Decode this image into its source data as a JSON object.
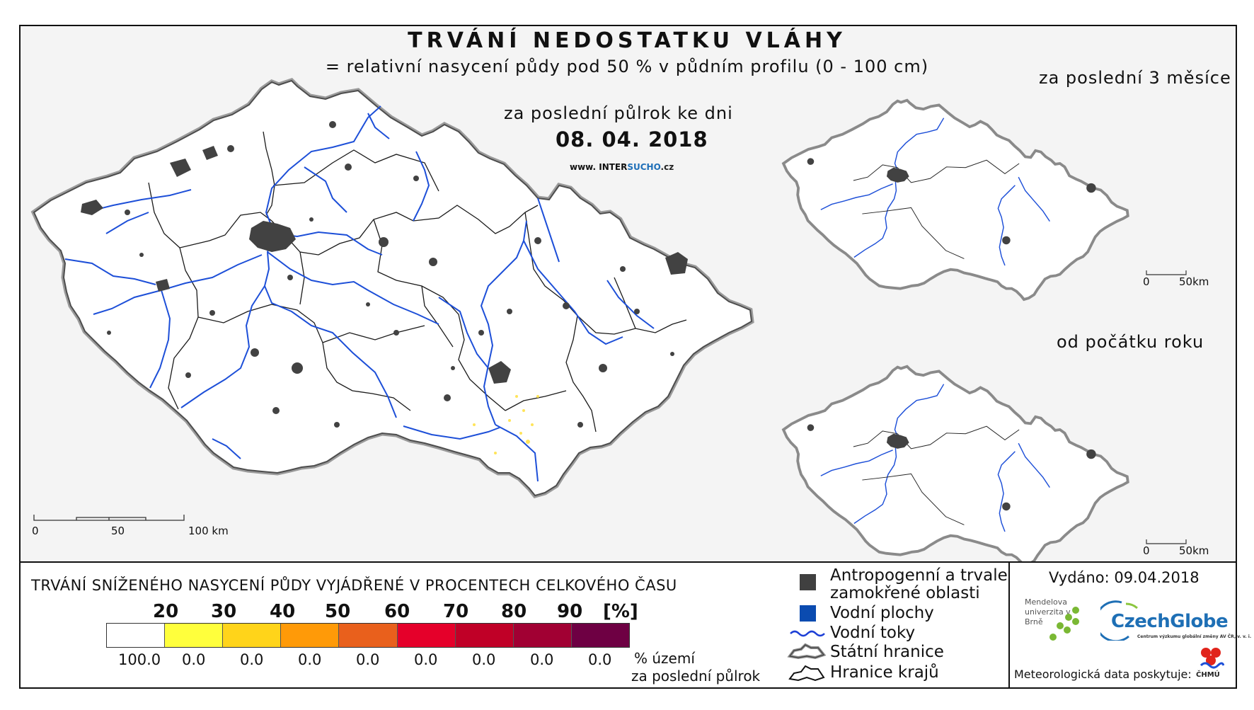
{
  "main_title": "TRVÁNÍ NEDOSTATKU VLÁHY",
  "subtitle": "= relativní nasycení půdy pod 50 % v půdním profilu (0 - 100 cm)",
  "period_label": "za poslední půlrok ke dni",
  "date": "08. 04. 2018",
  "source": {
    "prefix": "www. INTER",
    "accent": "SUCHO",
    "suffix": ".cz"
  },
  "main_scale": {
    "labels": [
      "0",
      "50",
      "100 km"
    ]
  },
  "insets": [
    {
      "title": "za poslední 3 měsíce",
      "scale_labels": [
        "0",
        "50km"
      ]
    },
    {
      "title": "od počátku roku",
      "scale_labels": [
        "0",
        "50km"
      ]
    }
  ],
  "legend": {
    "heading": "TRVÁNÍ SNÍŽENÉHO NASYCENÍ PŮDY VYJÁDŘENÉ V PROCENTECH CELKOVÉHO ČASU",
    "class_labels": [
      "20",
      "30",
      "40",
      "50",
      "60",
      "70",
      "80",
      "90",
      "[%]"
    ],
    "colors": [
      "#ffffff",
      "#ffff3c",
      "#ffd41a",
      "#ff9a08",
      "#e9601c",
      "#e5002a",
      "#c00027",
      "#a10033",
      "#6e0043"
    ],
    "values": [
      "100.0",
      "0.0",
      "0.0",
      "0.0",
      "0.0",
      "0.0",
      "0.0",
      "0.0",
      "0.0"
    ],
    "unit_line1": "% území",
    "unit_line2": "za poslední půlrok"
  },
  "symbols": [
    {
      "icon": "square",
      "color": "#404040",
      "label_lines": [
        "Antropogenní a trvale",
        "zamokřené oblasti"
      ]
    },
    {
      "icon": "square",
      "color": "#0b4bb0",
      "label_lines": [
        "Vodní plochy"
      ]
    },
    {
      "icon": "wavy-line",
      "color": "#1d3fd6",
      "label_lines": [
        "Vodní toky"
      ]
    },
    {
      "icon": "border-outline",
      "color": "#6a6a6a",
      "label_lines": [
        "Státní hranice"
      ]
    },
    {
      "icon": "region-outline",
      "color": "#111111",
      "label_lines": [
        "Hranice krajů"
      ]
    }
  ],
  "issued": "Vydáno: 09.04.2018",
  "logos": {
    "mendel": "Mendelova univerzita v Brně",
    "czechglobe": "CzechGlobe",
    "czechglobe_sub": "Centrum výzkumu globální změny AV ČR, v. v. i.",
    "chmu": "ČHMÚ"
  },
  "data_provider": "Meteorologická data poskytuje:",
  "colors": {
    "rivers": "#1d4fd8",
    "urban": "#424242",
    "state_border": "#6a6a6a",
    "region_border": "#1a1a1a",
    "land": "#ffffff"
  }
}
